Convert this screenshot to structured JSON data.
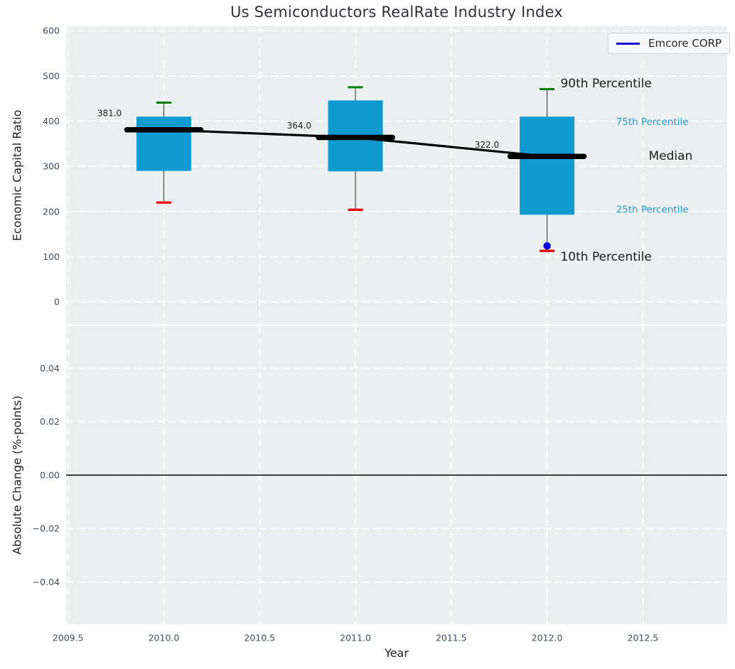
{
  "chart_data": {
    "type": "boxplot",
    "title": "Us Semiconductors RealRate Industry Index",
    "legend": {
      "label": "Emcore CORP",
      "position": "upper right"
    },
    "grid": true,
    "x_axis": {
      "label": "Year",
      "lim": [
        2009.49,
        2012.94
      ],
      "ticks": [
        2009.5,
        2010.0,
        2010.5,
        2011.0,
        2011.5,
        2012.0,
        2012.5
      ],
      "tick_labels": [
        "2009.5",
        "2010.0",
        "2010.5",
        "2011.0",
        "2011.5",
        "2012.0",
        "2012.5"
      ]
    },
    "top_panel": {
      "ylabel": "Economic Capital Ratio",
      "ylim": [
        -50,
        610
      ],
      "yticks": [
        0,
        100,
        200,
        300,
        400,
        500,
        600
      ],
      "ytick_labels": [
        "0",
        "100",
        "200",
        "300",
        "400",
        "500",
        "600"
      ],
      "boxes": [
        {
          "x": 2010,
          "p10": 220,
          "p25": 290,
          "median": 381,
          "p75": 410,
          "p90": 441
        },
        {
          "x": 2011,
          "p10": 204,
          "p25": 289,
          "median": 364,
          "p75": 446,
          "p90": 475
        },
        {
          "x": 2012,
          "p10": 113,
          "p25": 193,
          "median": 322,
          "p75": 410,
          "p90": 471
        }
      ],
      "median_trend": {
        "x": [
          2010,
          2011,
          2012
        ],
        "y": [
          381,
          364,
          322
        ]
      },
      "median_value_labels": [
        {
          "text": "381.0",
          "x": 2009.78,
          "y": 418
        },
        {
          "text": "364.0",
          "x": 2010.77,
          "y": 390
        },
        {
          "text": "322.0",
          "x": 2011.75,
          "y": 348
        }
      ],
      "emcore_series": {
        "name": "Emcore CORP",
        "points": [
          {
            "x": 2012,
            "y": 124
          }
        ]
      },
      "percentile_annotations": [
        {
          "text": "90th Percentile",
          "x": 2012.07,
          "y": 484,
          "style": "large-dark"
        },
        {
          "text": "75th Percentile",
          "x": 2012.36,
          "y": 399,
          "style": "small-blue"
        },
        {
          "text": "Median",
          "x": 2012.53,
          "y": 324,
          "style": "large-dark"
        },
        {
          "text": "25th Percentile",
          "x": 2012.36,
          "y": 205,
          "style": "small-blue"
        },
        {
          "text": "10th Percentile",
          "x": 2012.07,
          "y": 101,
          "style": "large-dark"
        }
      ]
    },
    "bottom_panel": {
      "ylabel": "Absolute Change (%-points)",
      "ylim": [
        -0.0558,
        0.0558
      ],
      "yticks": [
        0.04,
        0.02,
        0,
        -0.02,
        -0.04
      ],
      "ytick_labels": [
        "0.04",
        "0.02",
        "0.00",
        "−0.02",
        "−0.04"
      ],
      "zero_line": 0
    },
    "colors": {
      "box_fill": "#0f9bd0",
      "whisker": "#4a4a4a",
      "cap_90th": "#008000",
      "cap_10th": "#e60000",
      "median_line": "#000000",
      "emcore": "#0000e0",
      "grid": "#ffffff",
      "panel_bg": "#eceff0",
      "tick_text": "#3f4d5e",
      "annotation_blue": "#2298cb",
      "annotation_dark": "#1a1a1a",
      "zero_line": "#000000"
    }
  }
}
